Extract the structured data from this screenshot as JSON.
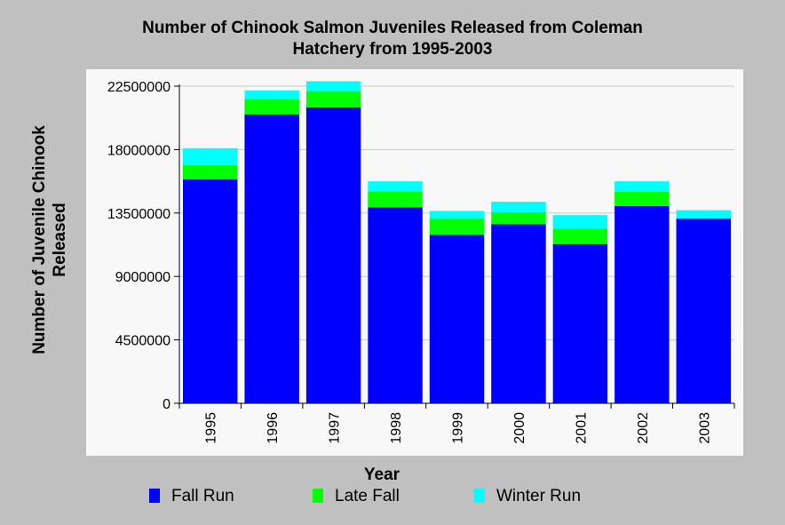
{
  "chart_data": {
    "type": "bar",
    "stacked": true,
    "title_lines": [
      "Number of Chinook Salmon Juveniles Released from Coleman",
      "Hatchery from 1995-2003"
    ],
    "xlabel": "Year",
    "ylabel_lines": [
      "Number of Juvenile Chinook",
      "Released"
    ],
    "categories": [
      "1995",
      "1996",
      "1997",
      "1998",
      "1999",
      "2000",
      "2001",
      "2002",
      "2003"
    ],
    "y_ticks": [
      "0",
      "4500000",
      "9000000",
      "13500000",
      "18000000",
      "22500000"
    ],
    "ylim": [
      0,
      22500000
    ],
    "grid": true,
    "legend_position": "bottom",
    "series": [
      {
        "name": "Fall Run",
        "color": "#0000ff",
        "values": [
          15900000,
          20500000,
          21000000,
          13900000,
          11950000,
          12700000,
          11300000,
          14000000,
          13100000
        ]
      },
      {
        "name": "Late Fall",
        "color": "#00ff00",
        "values": [
          1000000,
          1100000,
          1150000,
          1150000,
          1150000,
          850000,
          1100000,
          1000000,
          0
        ]
      },
      {
        "name": "Winter Run",
        "color": "#00ffff",
        "values": [
          1200000,
          600000,
          700000,
          700000,
          550000,
          750000,
          950000,
          750000,
          600000
        ]
      }
    ]
  }
}
